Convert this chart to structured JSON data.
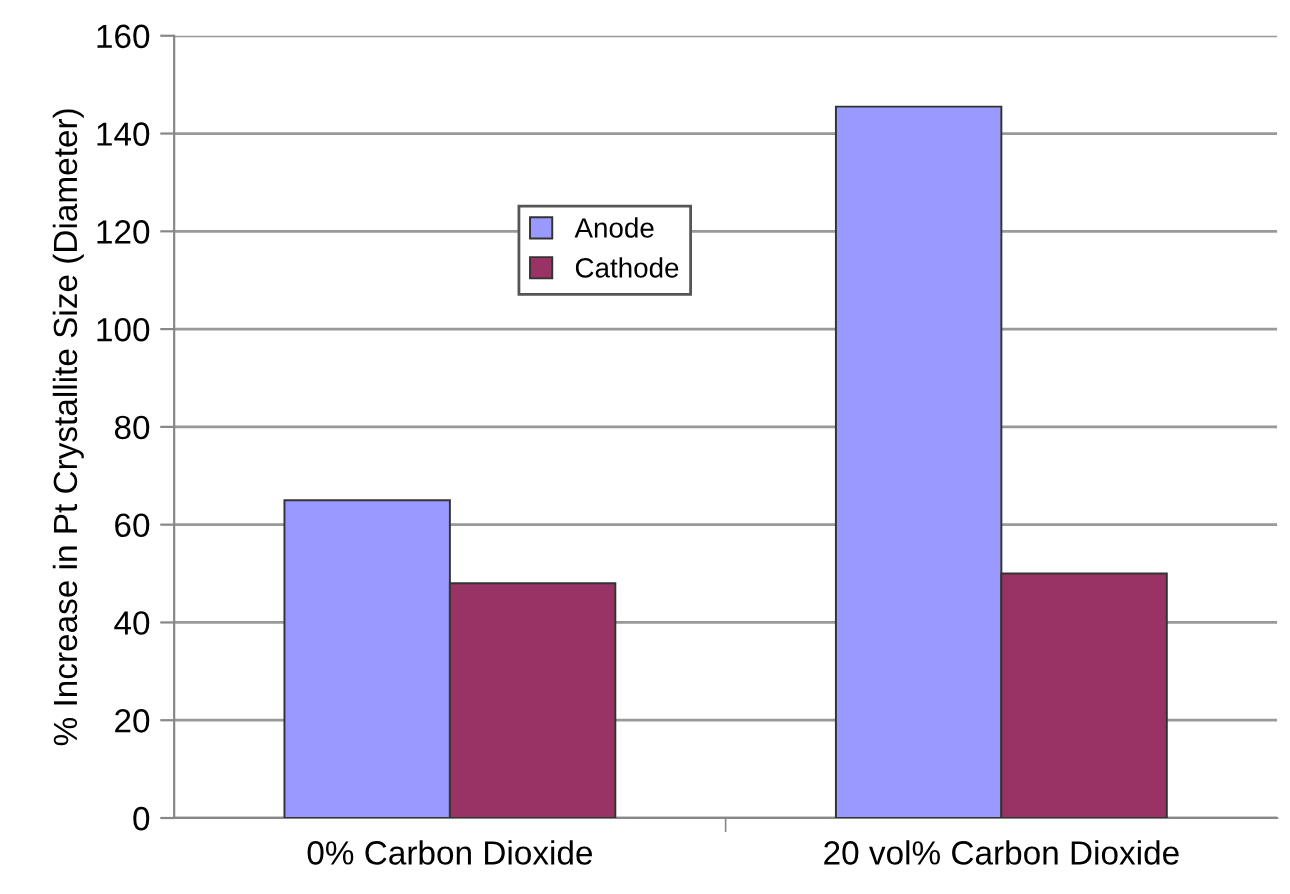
{
  "chart_data": {
    "type": "bar",
    "ylabel": "% Increase in Pt Crystallite Size (Diameter)",
    "categories": [
      "0% Carbon Dioxide",
      "20 vol% Carbon Dioxide"
    ],
    "series": [
      {
        "name": "Anode",
        "color": "#9999ff",
        "values": [
          65,
          145.5
        ]
      },
      {
        "name": "Cathode",
        "color": "#993366",
        "values": [
          48,
          50
        ]
      }
    ],
    "ylim": [
      0,
      160
    ],
    "yticks": [
      0,
      20,
      40,
      60,
      80,
      100,
      120,
      140,
      160
    ],
    "grid": "y",
    "legend": "top left"
  }
}
